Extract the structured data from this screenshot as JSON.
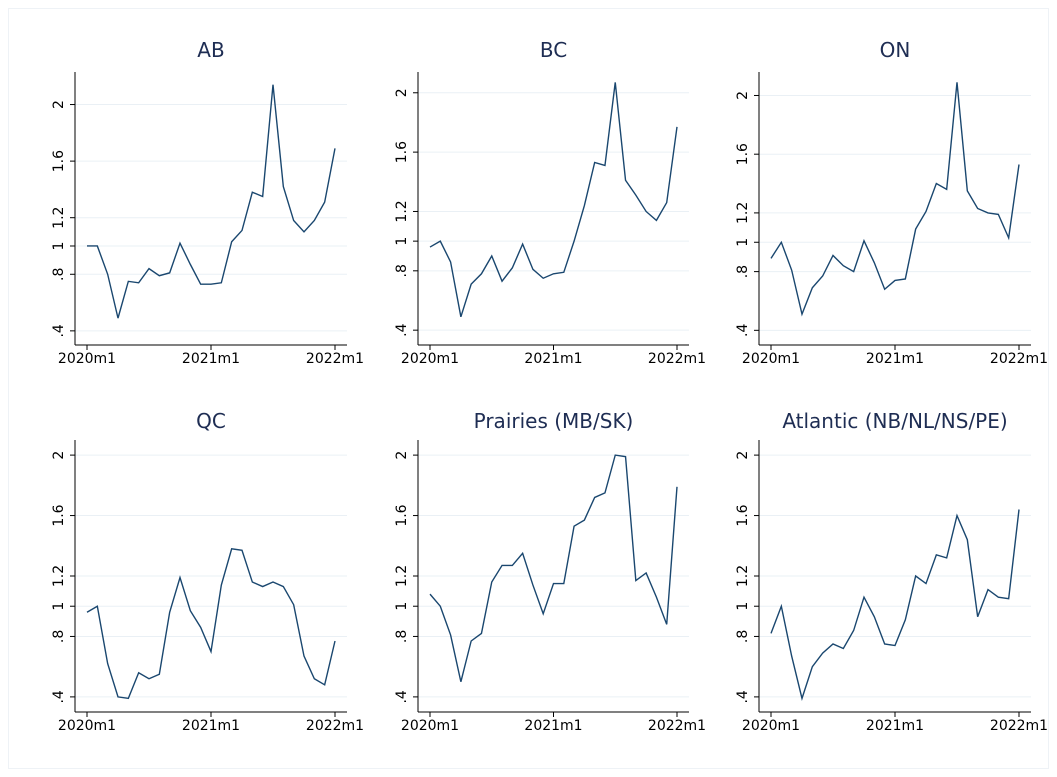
{
  "chart_data": [
    {
      "type": "line",
      "title": "AB",
      "color": "#1a476f",
      "grid": true,
      "categories": [
        "2020m1",
        null,
        null,
        null,
        null,
        null,
        null,
        null,
        null,
        null,
        null,
        null,
        "2021m1",
        null,
        null,
        null,
        null,
        null,
        null,
        null,
        null,
        null,
        null,
        null,
        "2022m1"
      ],
      "values": [
        1.0,
        1.0,
        0.8,
        0.49,
        0.75,
        0.74,
        0.84,
        0.79,
        0.81,
        1.02,
        0.87,
        0.73,
        0.73,
        0.74,
        1.03,
        1.11,
        1.38,
        1.35,
        2.14,
        1.42,
        1.18,
        1.1,
        1.18,
        1.31,
        1.69
      ],
      "ylim": [
        0.3,
        2.23
      ],
      "yticks": [
        {
          "value": 0.4,
          "label": ".4"
        },
        {
          "value": 0.8,
          "label": ".8"
        },
        1,
        1.2,
        1.6,
        2
      ]
    },
    {
      "type": "line",
      "title": "BC",
      "color": "#1a476f",
      "grid": true,
      "categories": [
        "2020m1",
        null,
        null,
        null,
        null,
        null,
        null,
        null,
        null,
        null,
        null,
        null,
        "2021m1",
        null,
        null,
        null,
        null,
        null,
        null,
        null,
        null,
        null,
        null,
        null,
        "2022m1"
      ],
      "values": [
        0.96,
        1.0,
        0.86,
        0.49,
        0.71,
        0.78,
        0.9,
        0.73,
        0.82,
        0.98,
        0.81,
        0.75,
        0.78,
        0.79,
        1.0,
        1.24,
        1.53,
        1.51,
        2.07,
        1.41,
        1.31,
        1.2,
        1.14,
        1.26,
        1.77
      ],
      "ylim": [
        0.3,
        2.14
      ],
      "yticks": [
        {
          "value": 0.4,
          "label": ".4"
        },
        {
          "value": 0.8,
          "label": ".8"
        },
        1,
        1.2,
        1.6,
        2
      ]
    },
    {
      "type": "line",
      "title": "ON",
      "color": "#1a476f",
      "grid": true,
      "categories": [
        "2020m1",
        null,
        null,
        null,
        null,
        null,
        null,
        null,
        null,
        null,
        null,
        null,
        "2021m1",
        null,
        null,
        null,
        null,
        null,
        null,
        null,
        null,
        null,
        null,
        null,
        "2022m1"
      ],
      "values": [
        0.89,
        1.0,
        0.81,
        0.51,
        0.69,
        0.77,
        0.91,
        0.84,
        0.8,
        1.01,
        0.86,
        0.68,
        0.74,
        0.75,
        1.09,
        1.21,
        1.4,
        1.36,
        2.09,
        1.35,
        1.23,
        1.2,
        1.19,
        1.03,
        1.53
      ],
      "ylim": [
        0.3,
        2.16
      ],
      "yticks": [
        {
          "value": 0.4,
          "label": ".4"
        },
        {
          "value": 0.8,
          "label": ".8"
        },
        1,
        1.2,
        1.6,
        2
      ]
    },
    {
      "type": "line",
      "title": "QC",
      "color": "#1a476f",
      "grid": true,
      "categories": [
        "2020m1",
        null,
        null,
        null,
        null,
        null,
        null,
        null,
        null,
        null,
        null,
        null,
        "2021m1",
        null,
        null,
        null,
        null,
        null,
        null,
        null,
        null,
        null,
        null,
        null,
        "2022m1"
      ],
      "values": [
        0.96,
        1.0,
        0.62,
        0.4,
        0.39,
        0.56,
        0.52,
        0.55,
        0.96,
        1.19,
        0.97,
        0.86,
        0.7,
        1.14,
        1.38,
        1.37,
        1.16,
        1.13,
        1.16,
        1.13,
        1.01,
        0.67,
        0.52,
        0.48,
        0.77
      ],
      "ylim": [
        0.3,
        2.1
      ],
      "yticks": [
        {
          "value": 0.4,
          "label": ".4"
        },
        {
          "value": 0.8,
          "label": ".8"
        },
        1,
        1.2,
        1.6,
        2
      ]
    },
    {
      "type": "line",
      "title": "Prairies (MB/SK)",
      "color": "#1a476f",
      "grid": true,
      "categories": [
        "2020m1",
        null,
        null,
        null,
        null,
        null,
        null,
        null,
        null,
        null,
        null,
        null,
        "2021m1",
        null,
        null,
        null,
        null,
        null,
        null,
        null,
        null,
        null,
        null,
        null,
        "2022m1"
      ],
      "values": [
        1.08,
        1.0,
        0.81,
        0.5,
        0.77,
        0.82,
        1.16,
        1.27,
        1.27,
        1.35,
        1.14,
        0.95,
        1.15,
        1.15,
        1.53,
        1.57,
        1.72,
        1.75,
        2.0,
        1.99,
        1.17,
        1.22,
        1.06,
        0.88,
        1.79
      ],
      "ylim": [
        0.3,
        2.1
      ],
      "yticks": [
        {
          "value": 0.4,
          "label": ".4"
        },
        {
          "value": 0.8,
          "label": ".8"
        },
        1,
        1.2,
        1.6,
        2
      ]
    },
    {
      "type": "line",
      "title": "Atlantic (NB/NL/NS/PE)",
      "color": "#1a476f",
      "grid": true,
      "categories": [
        "2020m1",
        null,
        null,
        null,
        null,
        null,
        null,
        null,
        null,
        null,
        null,
        null,
        "2021m1",
        null,
        null,
        null,
        null,
        null,
        null,
        null,
        null,
        null,
        null,
        null,
        "2022m1"
      ],
      "values": [
        0.82,
        1.0,
        0.67,
        0.39,
        0.6,
        0.69,
        0.75,
        0.72,
        0.84,
        1.06,
        0.93,
        0.75,
        0.74,
        0.91,
        1.2,
        1.15,
        1.34,
        1.32,
        1.6,
        1.44,
        0.93,
        1.11,
        1.06,
        1.05,
        1.64
      ],
      "ylim": [
        0.3,
        2.1
      ],
      "yticks": [
        {
          "value": 0.4,
          "label": ".4"
        },
        {
          "value": 0.8,
          "label": ".8"
        },
        1,
        1.2,
        1.6,
        2
      ]
    }
  ]
}
